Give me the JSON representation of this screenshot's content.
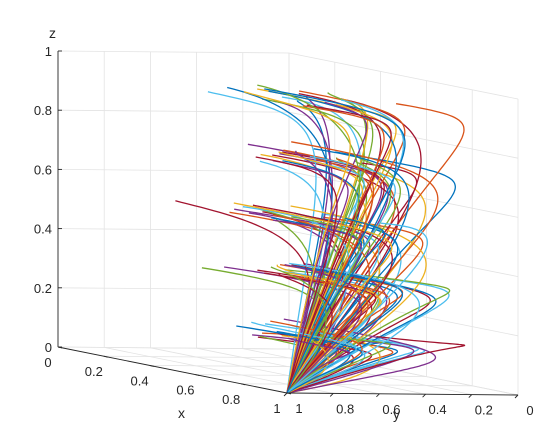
{
  "chart_data": {
    "type": "line",
    "projection": "3d",
    "xlabel": "x",
    "ylabel": "y",
    "zlabel": "z",
    "xlim": [
      0,
      1
    ],
    "ylim": [
      0,
      1
    ],
    "zlim": [
      0,
      1
    ],
    "x_ticks": [
      "0",
      "0.2",
      "0.4",
      "0.6",
      "0.8",
      "1"
    ],
    "y_ticks": [
      "0",
      "0.2",
      "0.4",
      "0.6",
      "0.8",
      "1"
    ],
    "z_ticks": [
      "0",
      "0.2",
      "0.4",
      "0.6",
      "0.8",
      "1"
    ],
    "grid": true,
    "box": "three back walls",
    "start_z_levels": [
      0.1,
      0.3,
      0.5,
      0.7,
      0.9
    ],
    "converges_to": [
      1,
      1,
      0
    ],
    "trajectory_count": 120,
    "colors": [
      "#0072BD",
      "#D95319",
      "#EDB120",
      "#7E2F8E",
      "#77AC30",
      "#4DBEEE",
      "#A2142F"
    ]
  }
}
